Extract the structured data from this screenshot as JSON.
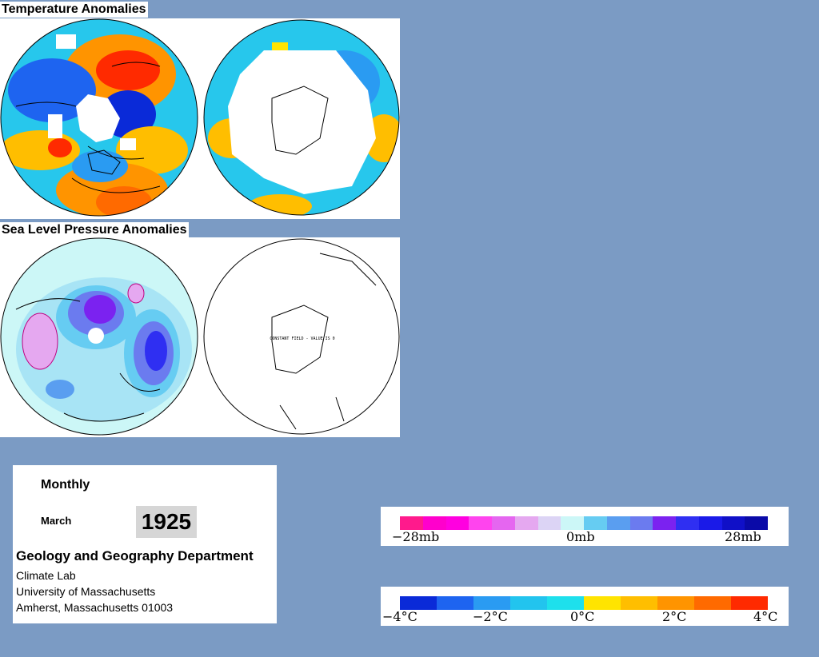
{
  "titles": {
    "temperature": "Temperature Anomalies",
    "pressure": "Sea Level Pressure Anomalies"
  },
  "maps": {
    "sh_pressure_note": "CONSTANT FIELD - VALUE IS 0"
  },
  "info": {
    "period_type": "Monthly",
    "month": "March",
    "year": "1925",
    "department": "Geology and Geography Department",
    "lab": "Climate Lab",
    "university": "University of Massachusetts",
    "address": "Amherst, Massachusetts 01003"
  },
  "pressure_legend": {
    "min_label": "−28mb",
    "mid_label": "0mb",
    "max_label": "28mb",
    "colors": [
      "#ff1a8c",
      "#ff00cc",
      "#ff00e0",
      "#ff44ee",
      "#e566f0",
      "#e5a8f0",
      "#dcd4f5",
      "#ccf7f7",
      "#66ccf2",
      "#5a9ef0",
      "#6b7bef",
      "#7b22f0",
      "#2f2ff2",
      "#1a1ae8",
      "#1010c8",
      "#0a0aa8"
    ]
  },
  "temperature_legend": {
    "labels": [
      "−4°C",
      "−2°C",
      "0°C",
      "2°C",
      "4°C"
    ],
    "colors": [
      "#0a2ad8",
      "#1e64f0",
      "#2a9bf2",
      "#22c4ee",
      "#1ee0ec",
      "#ffe400",
      "#ffbe00",
      "#ff9400",
      "#ff6a00",
      "#ff2a00"
    ]
  }
}
